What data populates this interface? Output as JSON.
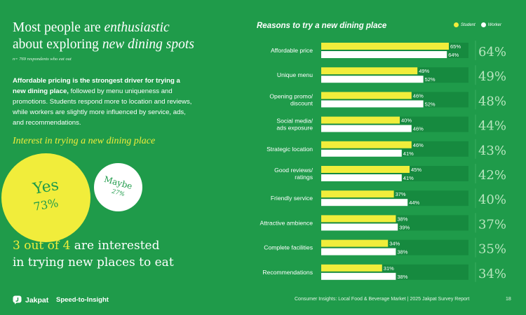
{
  "headline": {
    "part1": "Most people are ",
    "italic1": "enthusiastic",
    "part2": "about exploring ",
    "italic2": "new dining spots"
  },
  "respondents": "n= 769 respondents who eat out",
  "summary": {
    "bold": "Affordable pricing is the strongest driver for trying a new dining place,",
    "rest": " followed by menu uniqueness and promotions. Students respond more to location and reviews, while workers are slightly more influenced by service, ads, and recommendations."
  },
  "interest": {
    "title": "Interest in trying a new dining place",
    "yes_label": "Yes",
    "yes_value": "73%",
    "maybe_label": "Maybe",
    "maybe_value": "27%"
  },
  "claim": {
    "part1": "3 out of 4 ",
    "part2": "are interested",
    "part3": "in trying new places to eat"
  },
  "footer": {
    "logo": "Jakpat",
    "tagline": "Speed-to-Insight",
    "note": "Consumer Insights: Local Food & Beverage Market | 2025 Jakpat Survey Report",
    "page": "18"
  },
  "colors": {
    "background": "#1f9b4a",
    "student": "#f1ed3b",
    "worker": "#ffffff",
    "track": "#168a3f",
    "total": "#b8e6bf"
  },
  "chart_data": {
    "type": "bar",
    "orientation": "horizontal",
    "title": "Reasons to try a new dining place",
    "legend_placement": "top-right",
    "xlim": [
      0,
      100
    ],
    "categories": [
      [
        "Affordable price"
      ],
      [
        "Unique menu"
      ],
      [
        "Opening promo/",
        "discount"
      ],
      [
        "Social media/",
        "ads exposure"
      ],
      [
        "Strategic location"
      ],
      [
        "Good reviews/",
        "ratings"
      ],
      [
        "Friendly service"
      ],
      [
        "Attractive ambience"
      ],
      [
        "Complete facilities"
      ],
      [
        "Recommendations"
      ]
    ],
    "series": [
      {
        "name": "Student",
        "values": [
          65,
          49,
          46,
          40,
          46,
          45,
          37,
          38,
          34,
          31
        ]
      },
      {
        "name": "Worker",
        "values": [
          64,
          52,
          52,
          46,
          41,
          41,
          44,
          39,
          38,
          38
        ]
      }
    ],
    "totals": [
      64,
      49,
      48,
      44,
      43,
      42,
      40,
      37,
      35,
      34
    ]
  }
}
